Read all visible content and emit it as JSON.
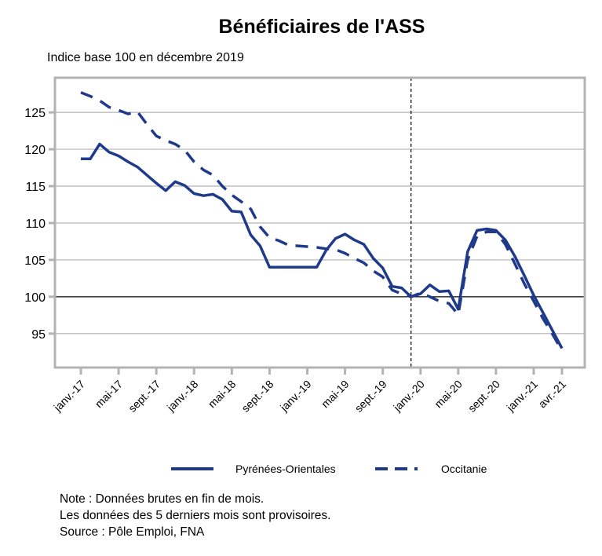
{
  "chart_data": {
    "type": "line",
    "title": "Bénéficiaires de l'ASS",
    "subtitle": "Indice base 100 en décembre 2019",
    "xlabel": "",
    "ylabel": "",
    "ylim": [
      90.4,
      129.7
    ],
    "yticks": [
      95,
      100,
      105,
      110,
      115,
      120,
      125
    ],
    "reference_line_y": 100,
    "vertical_marker_month_index": 35,
    "x_month_indices_start": "janv.-17",
    "xtick_labels": [
      "janv.-17",
      "mai-17",
      "sept.-17",
      "janv.-18",
      "mai-18",
      "sept.-18",
      "janv.-19",
      "mai-19",
      "sept.-19",
      "janv.-20",
      "mai-20",
      "sept.-20",
      "janv.-21",
      "avr.-21"
    ],
    "xtick_month_indices": [
      0,
      4,
      8,
      12,
      16,
      20,
      24,
      28,
      32,
      36,
      40,
      44,
      48,
      51
    ],
    "grid": "horizontal",
    "legend_position": "bottom",
    "series": [
      {
        "name": "Pyrénées-Orientales",
        "style": "solid",
        "color": "#1F3A8A",
        "values": [
          118.7,
          118.7,
          120.7,
          119.6,
          119.1,
          118.3,
          117.6,
          116.5,
          115.4,
          114.4,
          115.6,
          115.1,
          114.0,
          113.7,
          113.9,
          113.2,
          111.6,
          111.5,
          108.4,
          106.9,
          104.0,
          104.0,
          104.0,
          104.0,
          104.0,
          104.0,
          106.3,
          107.9,
          108.5,
          107.7,
          107.1,
          105.2,
          103.9,
          101.4,
          101.2,
          100.0,
          100.4,
          101.6,
          100.7,
          100.8,
          98.3,
          106.1,
          109.0,
          109.2,
          109.0,
          107.7,
          105.5,
          102.9,
          100.2,
          97.8,
          95.4,
          93.0
        ]
      },
      {
        "name": "Occitanie",
        "style": "dashed",
        "color": "#1F3A8A",
        "values": [
          127.7,
          127.2,
          126.6,
          125.7,
          125.3,
          124.8,
          125.1,
          123.4,
          121.8,
          121.2,
          120.7,
          119.9,
          118.3,
          117.2,
          116.5,
          115.0,
          113.8,
          112.9,
          111.9,
          109.5,
          108.0,
          107.6,
          107.0,
          106.9,
          106.8,
          106.7,
          106.5,
          106.4,
          105.9,
          105.2,
          104.6,
          103.5,
          102.7,
          100.9,
          100.4,
          100.0,
          100.5,
          100.0,
          99.4,
          99.1,
          97.6,
          105.0,
          108.2,
          108.8,
          108.8,
          107.1,
          104.5,
          101.8,
          99.4,
          97.0,
          94.9,
          92.7
        ]
      }
    ]
  },
  "notes": [
    "Note : Données brutes en fin de mois.",
    "Les données des 5 derniers mois sont provisoires.",
    "Source : Pôle Emploi, FNA"
  ]
}
